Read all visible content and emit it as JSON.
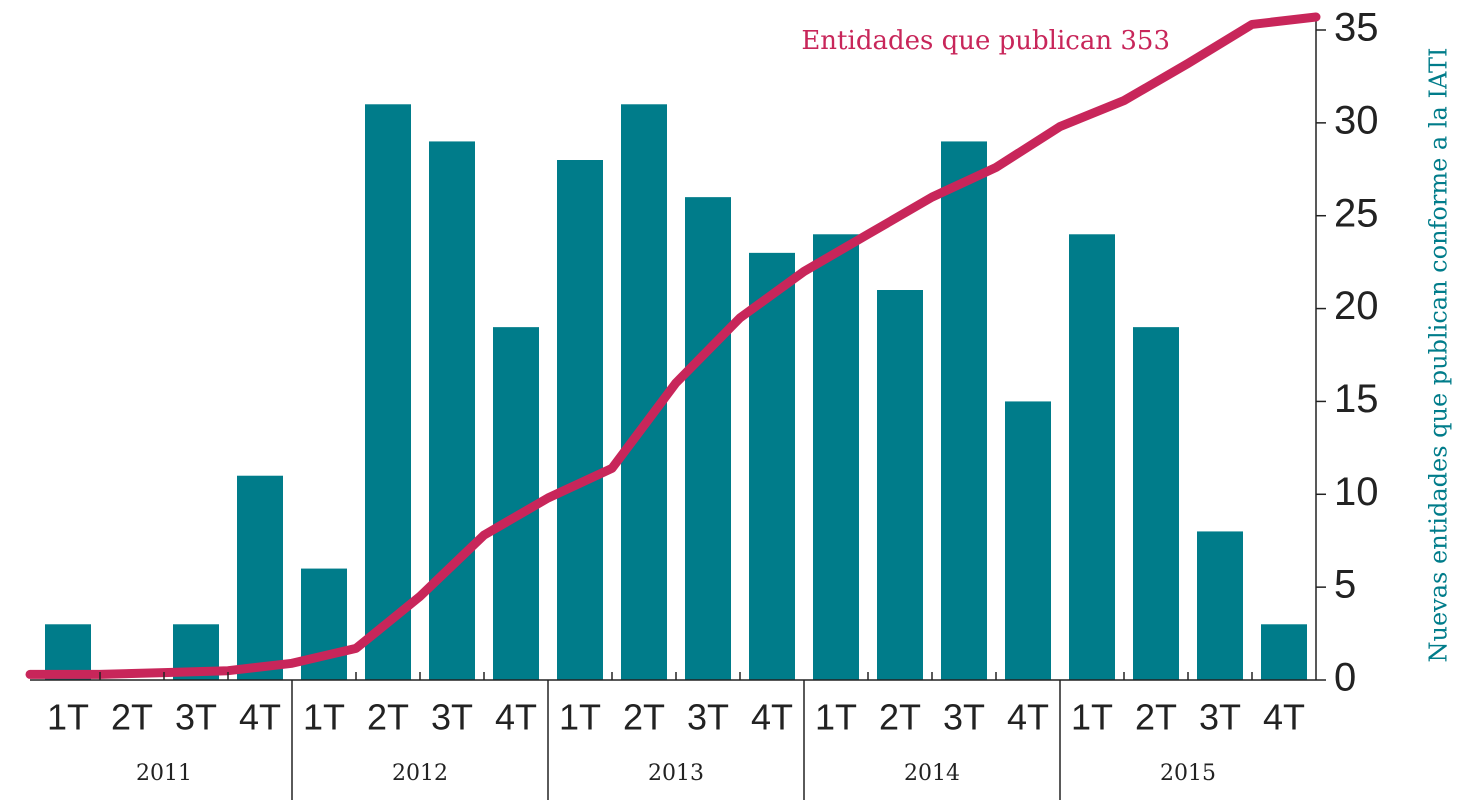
{
  "chart_data": {
    "type": "bar",
    "categories": [
      "1T",
      "2T",
      "3T",
      "4T",
      "1T",
      "2T",
      "3T",
      "4T",
      "1T",
      "2T",
      "3T",
      "4T",
      "1T",
      "2T",
      "3T",
      "4T",
      "1T",
      "2T",
      "3T",
      "4T"
    ],
    "groups": [
      "2011",
      "2012",
      "2013",
      "2014",
      "2015"
    ],
    "series": [
      {
        "name": "Nuevas entidades",
        "type": "bar",
        "color": "#007c8a",
        "values": [
          3,
          0,
          3,
          11,
          6,
          31,
          29,
          19,
          28,
          31,
          26,
          23,
          24,
          21,
          29,
          15,
          24,
          19,
          8,
          3
        ]
      },
      {
        "name": "Entidades que publican 353",
        "type": "line",
        "color": "#c8265a",
        "values": [
          0.3,
          0.4,
          0.5,
          0.9,
          1.7,
          4.5,
          7.8,
          9.8,
          11.4,
          16,
          19.5,
          22,
          24,
          26,
          27.6,
          29.8,
          31.2,
          33.2,
          35.3,
          35.7
        ]
      }
    ],
    "y_label": "Nuevas entidades que publican conforme a la IATI",
    "ylim": [
      0,
      35
    ],
    "yticks": [
      0,
      5,
      10,
      15,
      20,
      25,
      30,
      35
    ]
  }
}
